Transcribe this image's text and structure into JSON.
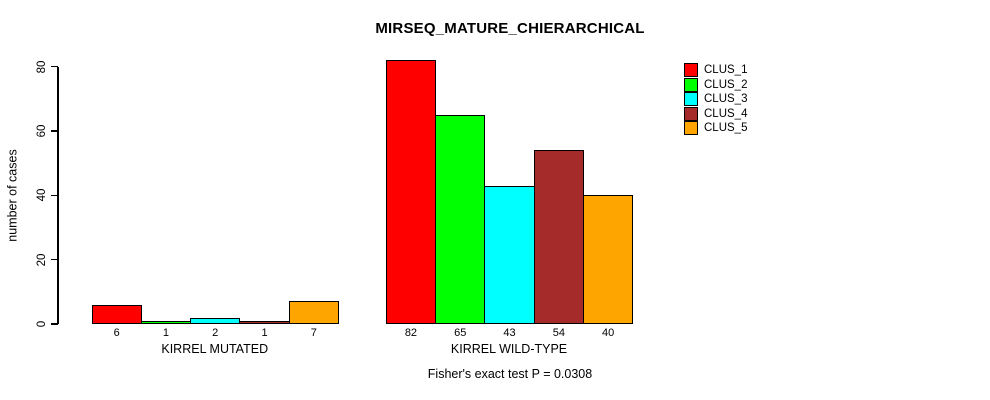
{
  "chart_data": {
    "type": "bar",
    "title": "MIRSEQ_MATURE_CHIERARCHICAL",
    "ylabel": "number of cases",
    "xlabel": "",
    "ylim": [
      0,
      82
    ],
    "yticks": [
      0,
      20,
      40,
      60,
      80
    ],
    "grid": false,
    "legend_position": "top-right",
    "categories": [
      "KIRREL MUTATED",
      "KIRREL WILD-TYPE"
    ],
    "series": [
      {
        "name": "CLUS_1",
        "color": "#FF0000",
        "values": [
          6,
          82
        ]
      },
      {
        "name": "CLUS_2",
        "color": "#00FF00",
        "values": [
          1,
          65
        ]
      },
      {
        "name": "CLUS_3",
        "color": "#00FFFF",
        "values": [
          2,
          43
        ]
      },
      {
        "name": "CLUS_4",
        "color": "#A52A2A",
        "values": [
          1,
          54
        ]
      },
      {
        "name": "CLUS_5",
        "color": "#FFA500",
        "values": [
          7,
          40
        ]
      }
    ],
    "bar_value_labels_shown": true,
    "annotation": "Fisher's exact test P = 0.0308",
    "colors": {
      "background": "#FFFFFF",
      "axis": "#000000",
      "text": "#000000"
    }
  }
}
